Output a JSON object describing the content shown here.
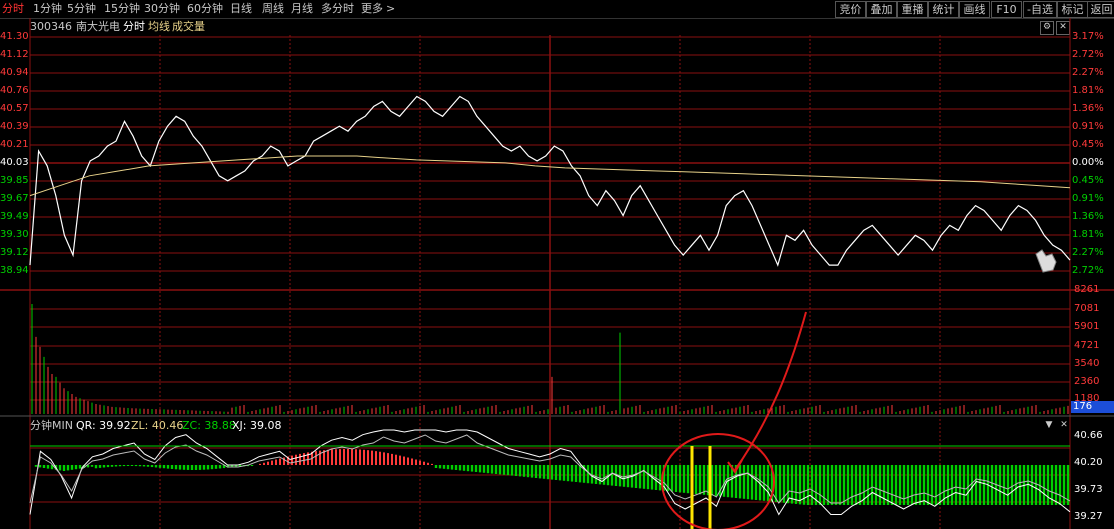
{
  "timeframes": [
    "分时",
    "1分钟",
    "5分钟",
    "15分钟",
    "30分钟",
    "60分钟",
    "日线",
    "周线",
    "月线",
    "多分时",
    "更多"
  ],
  "more_arrow": ">",
  "right_buttons": [
    "竞价",
    "叠加",
    "重播",
    "统计",
    "画线",
    "F10",
    "-自选",
    "标记",
    "返回"
  ],
  "stock": {
    "code": "300346",
    "name": "南大光电",
    "mode": "分时",
    "avg_label": "均线",
    "vol_label": "成交量"
  },
  "price_labels": [
    "41.30",
    "41.12",
    "40.94",
    "40.76",
    "40.57",
    "40.39",
    "40.21",
    "40.03",
    "39.85",
    "39.67",
    "39.49",
    "39.30",
    "39.12",
    "38.94"
  ],
  "percent_labels": [
    "3.17%",
    "2.72%",
    "2.27%",
    "1.81%",
    "1.36%",
    "0.91%",
    "0.45%",
    "0.00%",
    "0.45%",
    "0.91%",
    "1.36%",
    "1.81%",
    "2.27%",
    "2.72%"
  ],
  "volume_labels": [
    "8261",
    "7081",
    "5901",
    "4721",
    "3540",
    "2360",
    "1180"
  ],
  "current_volume": "176",
  "indicator": {
    "name": "分钟MIN",
    "qr": "QR: 39.92",
    "zl": "ZL: 40.46",
    "zc": "ZC: 38.88",
    "xj": "XJ: 39.08"
  },
  "indicator_labels": [
    "40.66",
    "40.20",
    "39.73",
    "39.27"
  ],
  "colors": {
    "up": "#ff3a3a",
    "down": "#00d000",
    "grid": "#8a1010",
    "price_line": "#ffffff",
    "avg_line": "#e8d28a",
    "annotation": "#e01a1a",
    "marker": "#ffe600"
  },
  "chart_data": {
    "type": "line",
    "ylim": [
      38.94,
      41.3
    ],
    "base_price": 40.03,
    "price": [
      39.0,
      40.15,
      40.0,
      39.7,
      39.3,
      39.1,
      39.85,
      40.05,
      40.1,
      40.2,
      40.25,
      40.45,
      40.3,
      40.1,
      40.0,
      40.25,
      40.4,
      40.5,
      40.45,
      40.3,
      40.2,
      40.05,
      39.9,
      39.85,
      39.9,
      39.95,
      40.05,
      40.1,
      40.2,
      40.15,
      40.0,
      40.05,
      40.1,
      40.25,
      40.3,
      40.35,
      40.4,
      40.35,
      40.45,
      40.5,
      40.6,
      40.65,
      40.55,
      40.5,
      40.6,
      40.7,
      40.65,
      40.55,
      40.5,
      40.6,
      40.7,
      40.65,
      40.5,
      40.4,
      40.3,
      40.2,
      40.15,
      40.2,
      40.1,
      40.05,
      40.1,
      40.2,
      40.15,
      40.0,
      39.9,
      39.7,
      39.6,
      39.75,
      39.65,
      39.5,
      39.7,
      39.8,
      39.65,
      39.5,
      39.35,
      39.2,
      39.1,
      39.2,
      39.3,
      39.15,
      39.3,
      39.6,
      39.7,
      39.75,
      39.6,
      39.4,
      39.2,
      39.0,
      39.3,
      39.25,
      39.35,
      39.2,
      39.1,
      39.0,
      39.0,
      39.15,
      39.25,
      39.35,
      39.4,
      39.3,
      39.2,
      39.1,
      39.2,
      39.3,
      39.25,
      39.15,
      39.3,
      39.4,
      39.35,
      39.5,
      39.6,
      39.55,
      39.45,
      39.35,
      39.5,
      39.6,
      39.55,
      39.45,
      39.3,
      39.2,
      39.15,
      39.05
    ],
    "avg": [
      39.7,
      39.8,
      39.9,
      39.95,
      40.0,
      40.02,
      40.04,
      40.06,
      40.08,
      40.1,
      40.1,
      40.1,
      40.08,
      40.06,
      40.05,
      40.04,
      40.03,
      40.0,
      39.98,
      39.97,
      39.96,
      39.95,
      39.94,
      39.93,
      39.92,
      39.91,
      39.9,
      39.89,
      39.88,
      39.87,
      39.86,
      39.85,
      39.84,
      39.82,
      39.8,
      39.78
    ],
    "volumes": [
      7700,
      5400,
      4700,
      4000,
      3300,
      2800,
      2600,
      2200,
      1800,
      1600,
      1400,
      1200,
      1100,
      1000,
      900,
      800,
      700,
      650,
      600,
      550,
      500,
      480,
      460,
      440,
      420,
      400,
      390,
      380,
      370,
      360,
      350,
      340,
      330,
      320,
      310,
      300,
      290,
      280,
      270,
      260,
      250,
      240,
      230,
      220,
      210,
      200,
      190,
      180,
      170,
      160
    ]
  }
}
